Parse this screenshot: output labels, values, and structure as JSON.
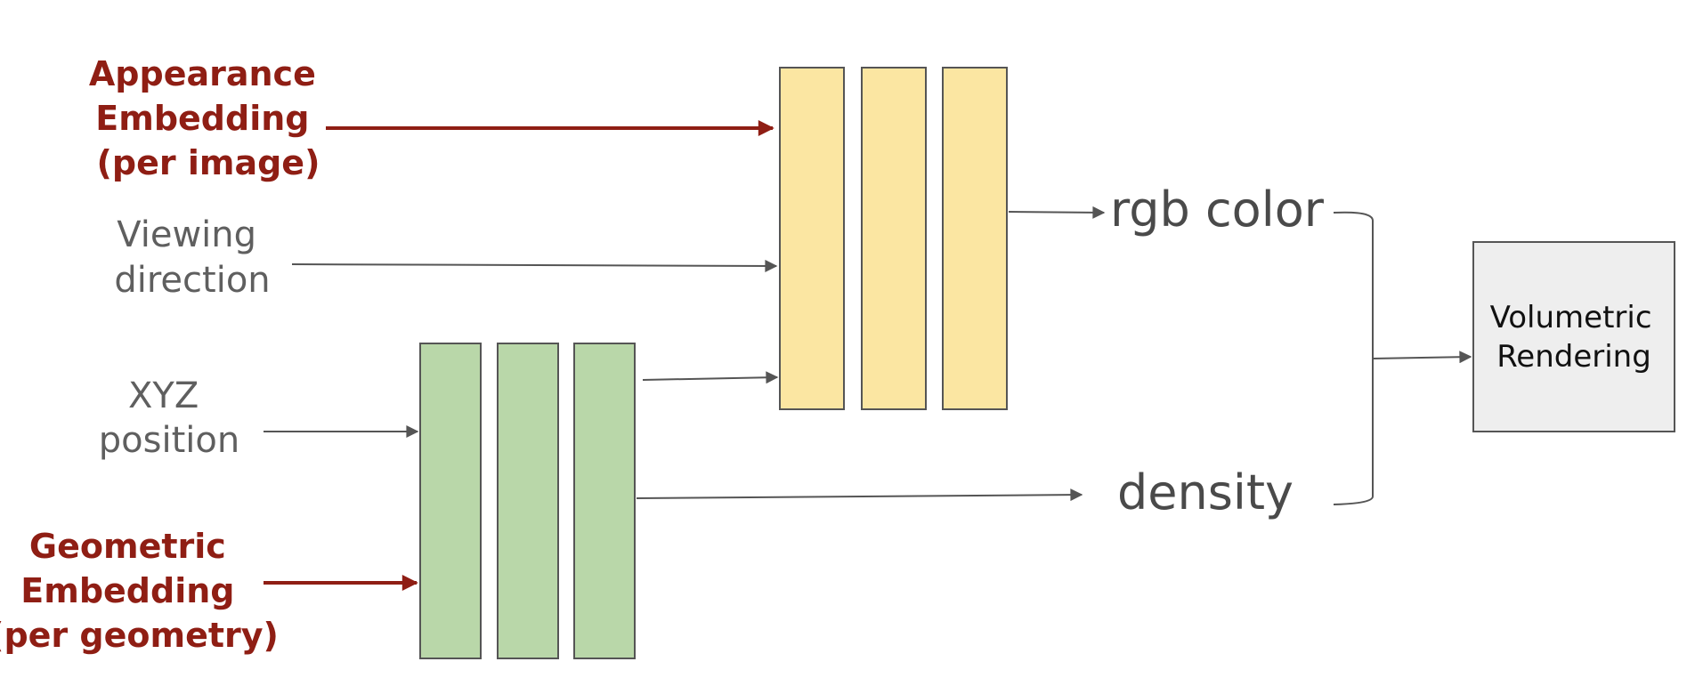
{
  "inputs": {
    "appearance": [
      "Appearance",
      "Embedding",
      "(per image)"
    ],
    "viewing": [
      "Viewing",
      "direction"
    ],
    "xyz": [
      "XYZ",
      "position"
    ],
    "geometric": [
      "Geometric",
      "Embedding",
      "(per geometry)"
    ]
  },
  "outputs": {
    "rgb": "rgb color",
    "density": "density"
  },
  "renderer": [
    "Volumetric",
    "Rendering"
  ],
  "colors": {
    "embedding_text": "#8f1e14",
    "embedding_arrow": "#8f1e14",
    "input_text": "#5f5f5f",
    "color_mlp_fill": "#fbe6a2",
    "density_mlp_fill": "#b9d7a9",
    "renderer_fill": "#eeeeee",
    "stroke": "#555555"
  }
}
